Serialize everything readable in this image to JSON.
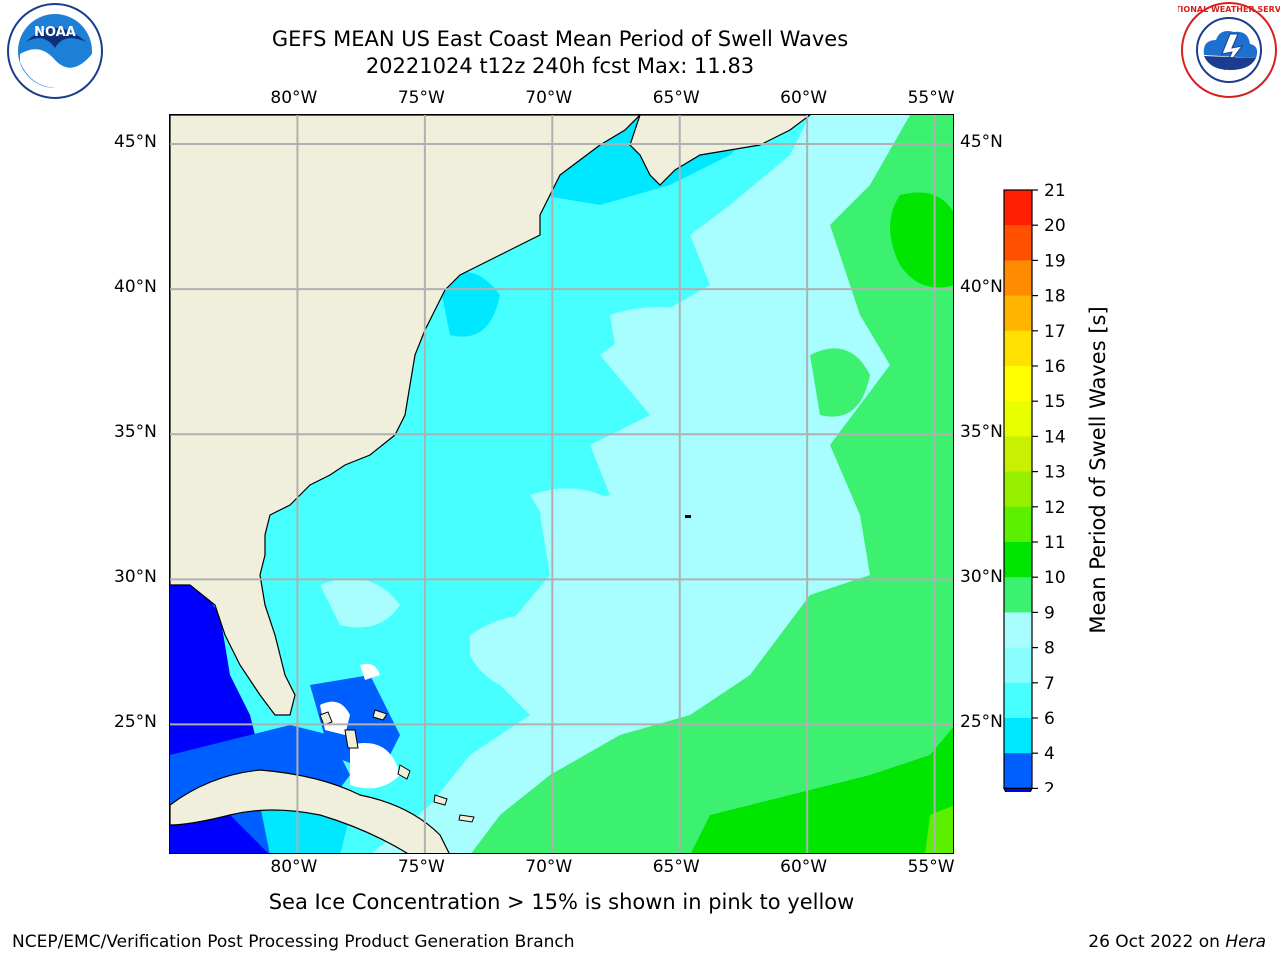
{
  "header": {
    "title_line1": "GEFS MEAN US East Coast Mean Period of Swell Waves",
    "title_line2": "20221024 t12z 240h fcst   Max: 11.83"
  },
  "logos": {
    "left": {
      "name": "noaa-logo",
      "text": "NOAA"
    },
    "right": {
      "name": "nws-logo",
      "text": "NATIONAL WEATHER SERVICE"
    }
  },
  "map": {
    "lon_labels": [
      "80°W",
      "75°W",
      "70°W",
      "65°W",
      "60°W",
      "55°W"
    ],
    "lon_values": [
      -80,
      -75,
      -70,
      -65,
      -60,
      -55
    ],
    "lat_labels": [
      "45°N",
      "40°N",
      "35°N",
      "30°N",
      "25°N"
    ],
    "lat_values": [
      45,
      40,
      35,
      30,
      25
    ],
    "extent": {
      "lon_min": -85,
      "lon_max": -54.2,
      "lat_min": 20.5,
      "lat_max": 46
    },
    "colors": {
      "land": "#efefdc",
      "grid": "#b0b0b0",
      "coast": "#000000",
      "no_data": "#ffffff"
    }
  },
  "colorbar": {
    "label": "Mean Period of Swell Waves [s]",
    "ticks": [
      "2",
      "4",
      "6",
      "7",
      "8",
      "9",
      "10",
      "11",
      "12",
      "13",
      "14",
      "15",
      "16",
      "17",
      "18",
      "19",
      "20",
      "21"
    ],
    "colors": [
      "#0060ff",
      "#00e8ff",
      "#48ffff",
      "#88fefe",
      "#a8fefe",
      "#3cf070",
      "#00e600",
      "#5af000",
      "#96f000",
      "#c8f000",
      "#e8ff00",
      "#ffff00",
      "#ffe000",
      "#ffb400",
      "#ff8c00",
      "#ff5000",
      "#ff1e00"
    ],
    "under_color": "#0000ff"
  },
  "footer": {
    "caption": "Sea Ice Concentration > 15% is shown in pink to yellow",
    "credit": "NCEP/EMC/Verification Post Processing Product Generation Branch",
    "date": "26 Oct 2022 on",
    "machine": "Hera"
  }
}
